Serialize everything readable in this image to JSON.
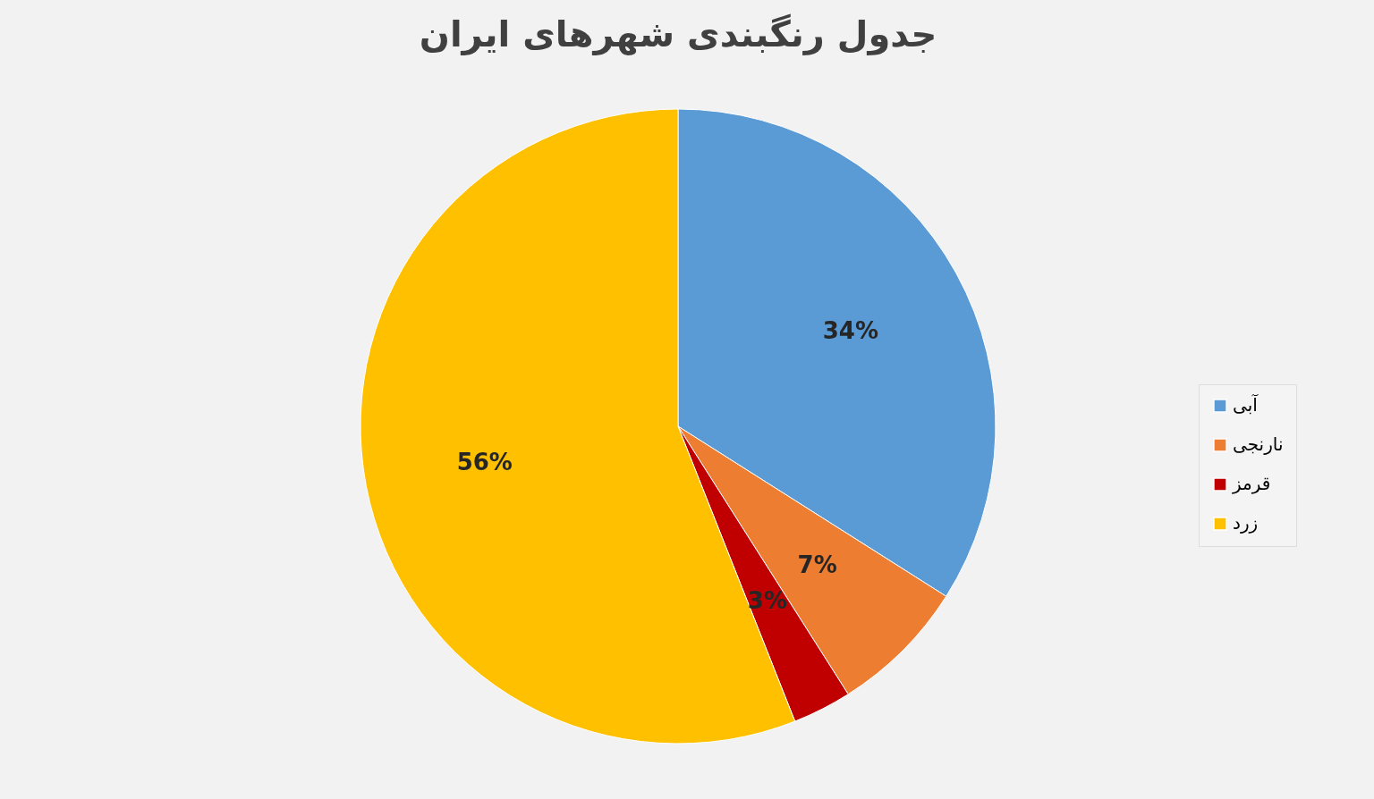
{
  "chart_data": {
    "type": "pie",
    "title": "جدول رنگبندی شهرهای ایران",
    "categories": [
      "آبی",
      "نارنجی",
      "قرمز",
      "زرد"
    ],
    "values": [
      34,
      7,
      3,
      56
    ],
    "colors": [
      "#5b9bd5",
      "#ed7d31",
      "#c00000",
      "#ffc000"
    ],
    "value_labels": [
      "34%",
      "7%",
      "3%",
      "56%"
    ],
    "legend": "right"
  }
}
